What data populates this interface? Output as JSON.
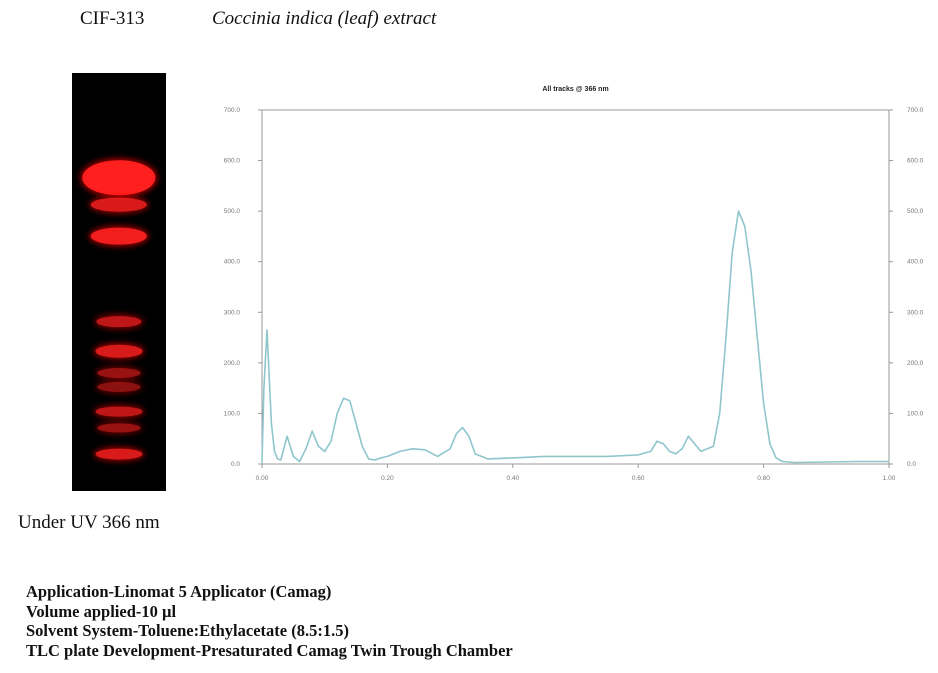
{
  "header": {
    "code": "CIF-313",
    "extract": "Coccinia indica (leaf) extract"
  },
  "tlc": {
    "caption": "Under UV 366 nm",
    "band_color": "#ff1f1f",
    "plate_color": "#000000",
    "bands": [
      {
        "pos": 0.25,
        "width": 0.78,
        "height": 0.085,
        "opacity": 1.0
      },
      {
        "pos": 0.315,
        "width": 0.6,
        "height": 0.035,
        "opacity": 0.85
      },
      {
        "pos": 0.39,
        "width": 0.6,
        "height": 0.04,
        "opacity": 0.95
      },
      {
        "pos": 0.595,
        "width": 0.48,
        "height": 0.028,
        "opacity": 0.75
      },
      {
        "pos": 0.665,
        "width": 0.5,
        "height": 0.03,
        "opacity": 0.85
      },
      {
        "pos": 0.718,
        "width": 0.46,
        "height": 0.024,
        "opacity": 0.6
      },
      {
        "pos": 0.752,
        "width": 0.46,
        "height": 0.024,
        "opacity": 0.55
      },
      {
        "pos": 0.81,
        "width": 0.5,
        "height": 0.026,
        "opacity": 0.75
      },
      {
        "pos": 0.85,
        "width": 0.46,
        "height": 0.022,
        "opacity": 0.6
      },
      {
        "pos": 0.912,
        "width": 0.5,
        "height": 0.026,
        "opacity": 0.85
      }
    ]
  },
  "chart_data": {
    "type": "line",
    "title": "All tracks @ 366 nm",
    "xlabel": "",
    "ylabel": "",
    "xlim": [
      0.0,
      1.0
    ],
    "ylim": [
      0.0,
      700.0
    ],
    "x_ticks": [
      "0.00",
      "0.20",
      "0.40",
      "0.60",
      "0.80",
      "1.00"
    ],
    "y_ticks_left": [
      "0.0",
      "100.0",
      "200.0",
      "300.0",
      "400.0",
      "500.0",
      "600.0",
      "700.0"
    ],
    "y_ticks_right": [
      "0.0",
      "100.0",
      "200.0",
      "300.0",
      "400.0",
      "500.0",
      "600.0",
      "700.0"
    ],
    "grid": false,
    "line_color": "#8fc6cc",
    "series": [
      {
        "x": [
          0.0,
          0.003,
          0.008,
          0.015,
          0.02,
          0.025,
          0.03,
          0.04,
          0.05,
          0.06,
          0.07,
          0.08,
          0.09,
          0.1,
          0.11,
          0.12,
          0.13,
          0.14,
          0.15,
          0.16,
          0.17,
          0.18,
          0.19,
          0.2,
          0.21,
          0.22,
          0.24,
          0.26,
          0.28,
          0.3,
          0.31,
          0.32,
          0.33,
          0.34,
          0.36,
          0.4,
          0.45,
          0.5,
          0.55,
          0.6,
          0.62,
          0.63,
          0.64,
          0.65,
          0.66,
          0.67,
          0.68,
          0.7,
          0.72,
          0.73,
          0.74,
          0.75,
          0.76,
          0.77,
          0.78,
          0.79,
          0.8,
          0.81,
          0.82,
          0.83,
          0.85,
          0.9,
          0.95,
          1.0
        ],
        "y": [
          3,
          150,
          265,
          80,
          25,
          10,
          8,
          55,
          15,
          5,
          30,
          65,
          35,
          25,
          45,
          100,
          130,
          125,
          80,
          35,
          10,
          8,
          12,
          15,
          20,
          25,
          30,
          28,
          15,
          30,
          60,
          72,
          55,
          20,
          10,
          12,
          15,
          15,
          15,
          18,
          25,
          45,
          40,
          25,
          20,
          30,
          55,
          25,
          35,
          100,
          250,
          420,
          500,
          470,
          380,
          250,
          120,
          40,
          12,
          5,
          3,
          4,
          5,
          5
        ]
      }
    ]
  },
  "info": {
    "line1": "Application-Linomat 5 Applicator (Camag)",
    "line2": "Volume applied-10 µl",
    "line3": "Solvent System-Toluene:Ethylacetate (8.5:1.5)",
    "line4": "TLC plate Development-Presaturated Camag Twin Trough Chamber"
  }
}
